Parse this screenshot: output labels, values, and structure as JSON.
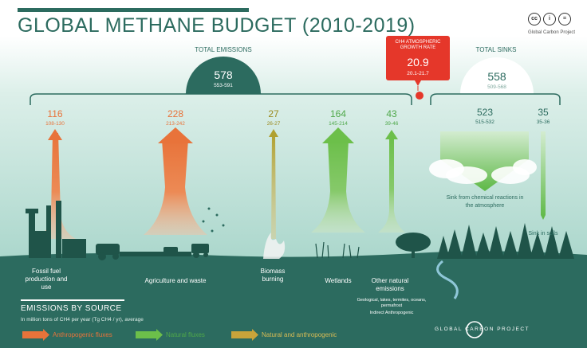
{
  "title": "GLOBAL METHANE BUDGET (2010-2019)",
  "license_icons": [
    "cc-icon",
    "by-icon",
    "nd-icon"
  ],
  "license_icon_glyphs": [
    "cc",
    "i",
    "="
  ],
  "gcp_small": "Global Carbon Project",
  "total_emissions": {
    "label": "TOTAL EMISSIONS",
    "value": "578",
    "range": "553-591"
  },
  "growth_rate": {
    "label": "CH4 ATMOSPHERIC GROWTH RATE",
    "value": "20.9",
    "range": "20.1-21.7"
  },
  "total_sinks": {
    "label": "TOTAL SINKS",
    "value": "558",
    "range": "509-568"
  },
  "sources": [
    {
      "value": "116",
      "range": "108-130",
      "label": "Fossil fuel production and use",
      "type": "anthropogenic"
    },
    {
      "value": "228",
      "range": "213-242",
      "label": "Agriculture and waste",
      "type": "anthropogenic"
    },
    {
      "value": "27",
      "range": "26-27",
      "label": "Biomass burning",
      "type": "mixed"
    },
    {
      "value": "164",
      "range": "145-214",
      "label": "Wetlands",
      "type": "natural"
    },
    {
      "value": "43",
      "range": "39-46",
      "label": "Other natural emissions",
      "note": "Geological, lakes, termites, oceans, permafrost",
      "note2": "Indirect Anthropogenic",
      "type": "natural"
    }
  ],
  "sinks": [
    {
      "value": "523",
      "range": "515-532",
      "label": "Sink from chemical reactions in the atmosphere"
    },
    {
      "value": "35",
      "range": "35-36",
      "label": "Sink in soils"
    }
  ],
  "legend": {
    "title": "EMISSIONS BY SOURCE",
    "subtitle": "In million tons of CH4 per year (Tg CH4 / yr), average",
    "items": [
      {
        "label": "Anthropogenic fluxes",
        "color": "#e8733a"
      },
      {
        "label": "Natural fluxes",
        "color": "#6cbf4a"
      },
      {
        "label": "Natural and anthropogenic",
        "color": "#c8a43a"
      }
    ]
  },
  "logo_text": "GLOBAL CARBON PROJECT",
  "colors": {
    "background": "#ffffff",
    "ground": "#2c6b5f",
    "anthropogenic": "#e8733a",
    "natural": "#6cbf4a",
    "mixed": "#b0a030",
    "growth_box": "#e5372a"
  }
}
